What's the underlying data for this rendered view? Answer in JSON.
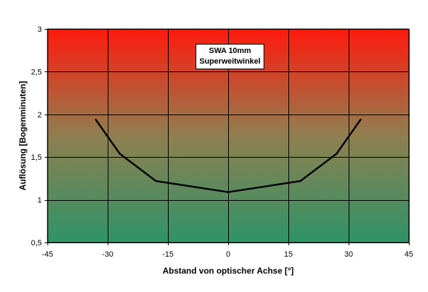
{
  "chart_data": {
    "type": "line",
    "title_lines": [
      "SWA 10mm",
      "Superweitwinkel"
    ],
    "xlabel": "Abstand von optischer Achse [°]",
    "ylabel": "Auflösung [Bogenminuten]",
    "xlim": [
      -45,
      45
    ],
    "ylim": [
      0.5,
      3
    ],
    "x_ticks": [
      -45,
      -30,
      -15,
      0,
      15,
      30,
      45
    ],
    "x_tick_labels": [
      "-45",
      "-30",
      "-15",
      "0",
      "15",
      "30",
      "45"
    ],
    "y_ticks": [
      0.5,
      1,
      1.5,
      2,
      2.5,
      3
    ],
    "y_tick_labels": [
      "0,5",
      "1",
      "1,5",
      "2",
      "2,5",
      "3"
    ],
    "grid": true,
    "background_gradient": {
      "top": "#ff1a0d",
      "middle": "#8f7f50",
      "bottom": "#2e9468"
    },
    "line_color": "#000000",
    "series": [
      {
        "x": [
          -33,
          -27,
          -18,
          0,
          18,
          27,
          33
        ],
        "values": [
          1.94,
          1.54,
          1.22,
          1.09,
          1.22,
          1.54,
          1.94
        ]
      }
    ]
  }
}
